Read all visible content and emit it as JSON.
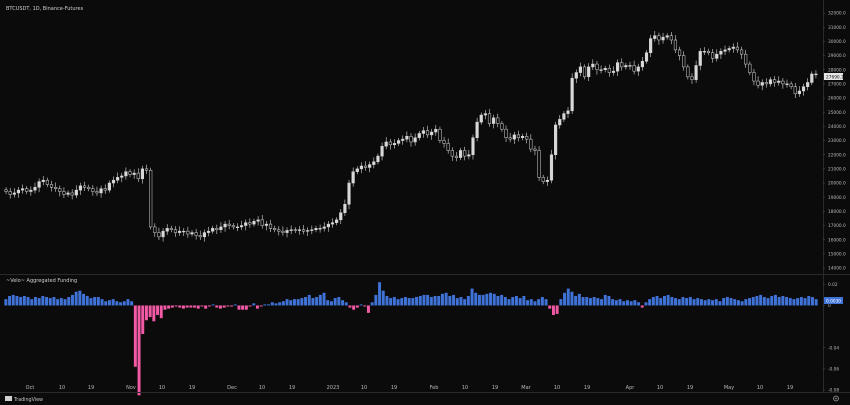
{
  "chart_data": [
    {
      "type": "candlestick",
      "title": "BTCUSDT, 1D, Binance-Futures",
      "last_price_label": "27690.1",
      "y_ticks": [
        "32000.0",
        "31000.0",
        "30000.0",
        "29000.0",
        "28000.0",
        "27000.0",
        "26000.0",
        "25000.0",
        "24000.0",
        "23000.0",
        "22000.0",
        "21000.0",
        "20000.0",
        "19000.0",
        "18000.0",
        "17000.0",
        "16000.0",
        "15000.0",
        "14000.0"
      ],
      "ylim": [
        14000,
        32500
      ],
      "x_ticks": [
        "Oct",
        "10",
        "19",
        "Nov",
        "10",
        "19",
        "Dec",
        "10",
        "19",
        "2023",
        "10",
        "19",
        "Feb",
        "10",
        "19",
        "Mar",
        "10",
        "19",
        "Apr",
        "10",
        "19",
        "May",
        "10",
        "19"
      ],
      "series_close": [
        19400,
        19200,
        19300,
        19500,
        19600,
        19400,
        19500,
        19700,
        20100,
        20200,
        19900,
        19700,
        19600,
        19400,
        19200,
        19300,
        19150,
        19500,
        19800,
        19700,
        19600,
        19400,
        19300,
        19600,
        19500,
        20000,
        20200,
        20400,
        20500,
        20800,
        20600,
        20700,
        20300,
        21000,
        20900,
        16900,
        16500,
        16200,
        16600,
        16800,
        16700,
        16500,
        16600,
        16600,
        16400,
        16500,
        16300,
        16200,
        16500,
        16600,
        16800,
        16700,
        16900,
        17100,
        17000,
        16900,
        16900,
        17000,
        17200,
        17100,
        17300,
        17400,
        17000,
        17100,
        16800,
        16700,
        16600,
        16500,
        16650,
        16700,
        16650,
        16700,
        16600,
        16650,
        16700,
        16800,
        16800,
        16900,
        17100,
        17200,
        17400,
        17900,
        18500,
        20000,
        20800,
        21000,
        21200,
        21100,
        21300,
        21500,
        21900,
        22600,
        22900,
        22700,
        22800,
        23000,
        23100,
        23300,
        22900,
        23200,
        23500,
        23700,
        23400,
        23600,
        23800,
        23000,
        22800,
        22300,
        21900,
        21800,
        22300,
        21900,
        22000,
        23200,
        24300,
        24800,
        24900,
        24200,
        24600,
        24200,
        23800,
        23200,
        23100,
        23400,
        23200,
        23300,
        23100,
        22400,
        22300,
        20400,
        20100,
        20200,
        22000,
        24100,
        24500,
        24900,
        25100,
        27400,
        27800,
        28200,
        27500,
        28200,
        28400,
        28000,
        28000,
        28100,
        27800,
        27900,
        28500,
        28200,
        28300,
        28300,
        27900,
        28200,
        28600,
        29200,
        30200,
        30400,
        30100,
        30300,
        30400,
        30100,
        29400,
        29000,
        28200,
        27500,
        27300,
        28300,
        29300,
        29300,
        29200,
        28800,
        29100,
        29300,
        29400,
        29500,
        29600,
        29400,
        29100,
        28400,
        27800,
        27200,
        26900,
        27100,
        27000,
        27300,
        27100,
        27200,
        27000,
        27000,
        26800,
        26300,
        26500,
        26800,
        27100,
        27700,
        27700
      ]
    },
    {
      "type": "bar",
      "title": "~Velo~ Aggregated Funding",
      "y_ticks": [
        "0.02",
        "0",
        "-0.04",
        "-0.06",
        "-0.08"
      ],
      "ylim": [
        -0.08,
        0.026
      ],
      "current_value_label": "0.0030",
      "values": [
        0.006,
        0.009,
        0.01,
        0.009,
        0.008,
        0.009,
        0.008,
        0.006,
        0.008,
        0.007,
        0.009,
        0.008,
        0.007,
        0.008,
        0.006,
        0.007,
        0.006,
        0.008,
        0.01,
        0.013,
        0.014,
        0.011,
        0.009,
        0.007,
        0.008,
        0.008,
        0.006,
        0.004,
        0.005,
        0.006,
        0.004,
        0.003,
        0.004,
        0.006,
        0.004,
        -0.058,
        -0.085,
        -0.027,
        -0.014,
        -0.011,
        -0.015,
        -0.009,
        -0.012,
        -0.004,
        -0.003,
        -0.002,
        -0.001,
        -0.002,
        -0.003,
        -0.002,
        -0.002,
        -0.002,
        -0.003,
        -0.001,
        -0.003,
        -0.001,
        0.001,
        -0.002,
        -0.003,
        -0.002,
        -0.001,
        -0.001,
        0.001,
        -0.004,
        -0.004,
        -0.004,
        -0.001,
        0.002,
        -0.003,
        -0.001,
        0.001,
        0.001,
        0.003,
        0.002,
        0.003,
        0.004,
        0.006,
        0.005,
        0.006,
        0.006,
        0.007,
        0.008,
        0.01,
        0.007,
        0.008,
        0.01,
        0.012,
        0.005,
        0.004,
        0.007,
        0.008,
        0.005,
        0.003,
        -0.002,
        -0.004,
        -0.002,
        0.001,
        -0.001,
        -0.007,
        0.003,
        0.01,
        0.022,
        0.014,
        0.009,
        0.007,
        0.008,
        0.006,
        0.007,
        0.008,
        0.007,
        0.007,
        0.008,
        0.009,
        0.01,
        0.01,
        0.008,
        0.009,
        0.009,
        0.011,
        0.012,
        0.009,
        0.01,
        0.007,
        0.008,
        0.006,
        0.009,
        0.016,
        0.012,
        0.01,
        0.01,
        0.011,
        0.012,
        0.011,
        0.009,
        0.01,
        0.008,
        0.006,
        0.008,
        0.009,
        0.007,
        0.009,
        0.005,
        0.006,
        0.004,
        0.006,
        0.008,
        0.006,
        -0.003,
        -0.009,
        -0.008,
        0.006,
        0.012,
        0.016,
        0.013,
        0.009,
        0.011,
        0.008,
        0.008,
        0.007,
        0.008,
        0.007,
        0.006,
        0.01,
        0.009,
        0.006,
        0.005,
        0.006,
        0.004,
        0.005,
        0.004,
        0.005,
        0.003,
        -0.002,
        0.003,
        0.006,
        0.008,
        0.009,
        0.007,
        0.009,
        0.01,
        0.008,
        0.007,
        0.006,
        0.008,
        0.007,
        0.008,
        0.006,
        0.007,
        0.006,
        0.005,
        0.006,
        0.005,
        0.006,
        0.004,
        0.007,
        0.008,
        0.007,
        0.006,
        0.005,
        0.004,
        0.006,
        0.007,
        0.008,
        0.009,
        0.01,
        0.008,
        0.007,
        0.009,
        0.01,
        0.008,
        0.009,
        0.008,
        0.007,
        0.006,
        0.007,
        0.008,
        0.007,
        0.009,
        0.008,
        0.006
      ]
    }
  ],
  "colors": {
    "background": "#0b0b0c",
    "candle": "#d9d9d9",
    "positive": "#3f73d8",
    "negative": "#f25aa5",
    "grid": "#1e1e22",
    "text": "#b9b9b9"
  },
  "branding": {
    "logo_text": "TradingView"
  }
}
